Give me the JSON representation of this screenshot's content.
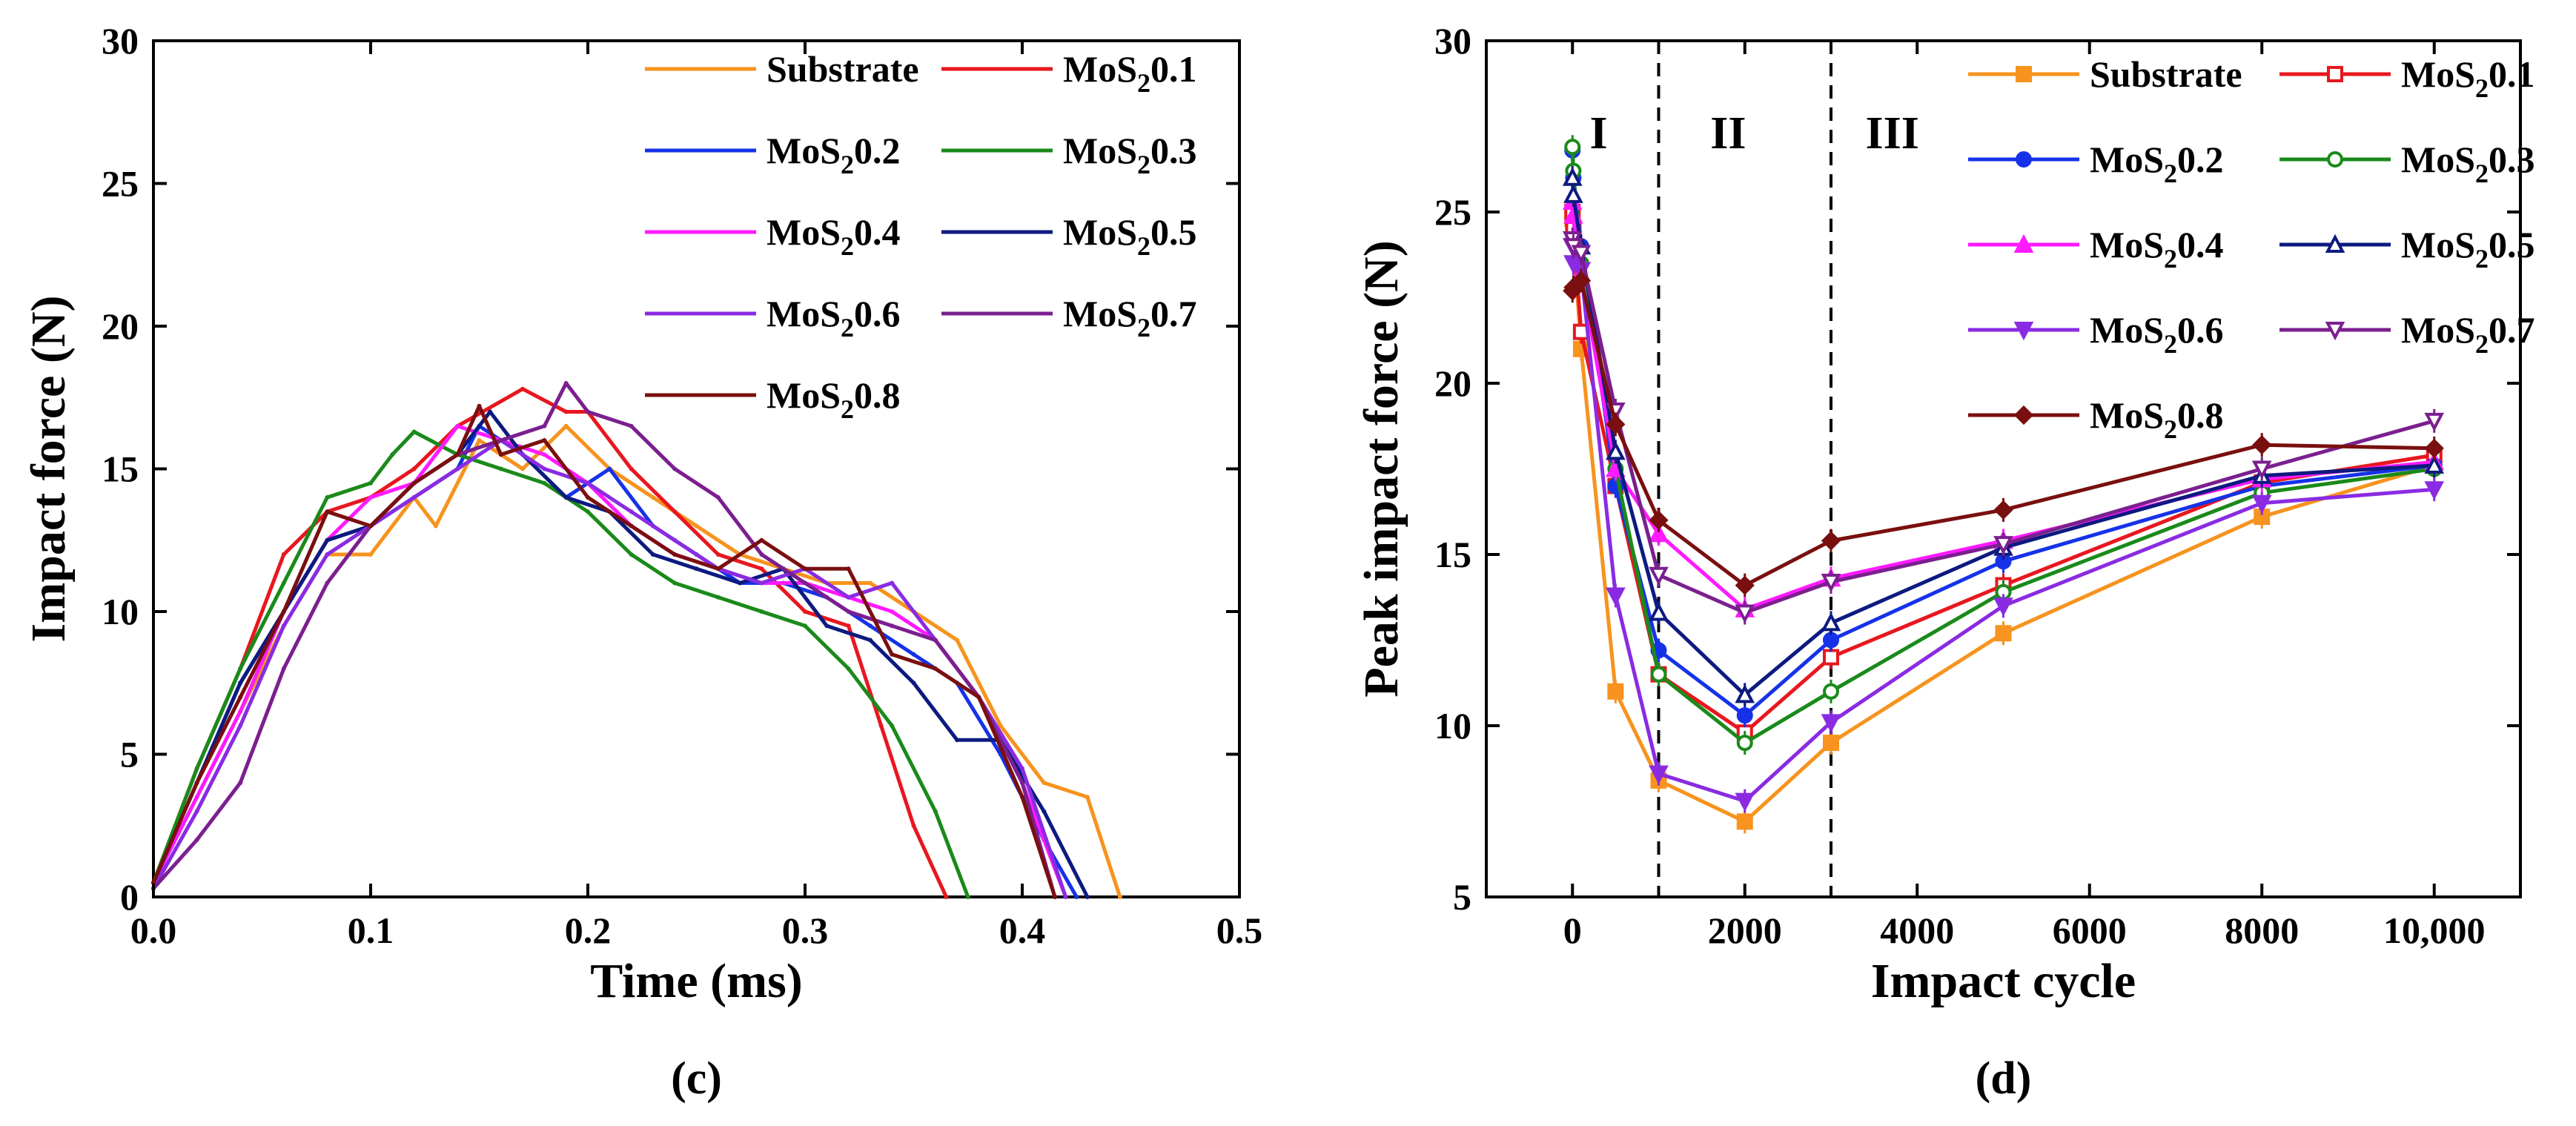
{
  "chart_data": [
    {
      "panel": "(c)",
      "type": "line",
      "title": "",
      "xlabel": "Time (ms)",
      "ylabel": "Impact force (N)",
      "xlim": [
        0.0,
        0.5
      ],
      "ylim": [
        0,
        30
      ],
      "xticks": [
        0.0,
        0.1,
        0.2,
        0.3,
        0.4,
        0.5
      ],
      "xtick_labels": [
        "0.0",
        "0.1",
        "0.2",
        "0.3",
        "0.4",
        "0.5"
      ],
      "yticks": [
        0,
        5,
        10,
        15,
        20,
        25,
        30
      ],
      "ytick_labels": [
        "0",
        "5",
        "10",
        "15",
        "20",
        "25",
        "30"
      ],
      "legend_position": "top-right",
      "series": [
        {
          "name": "Substrate",
          "color": "#f7931e",
          "legend_main": "Substrate",
          "legend_sub": "",
          "legend_tail": "",
          "x": [
            0,
            0.02,
            0.04,
            0.06,
            0.08,
            0.1,
            0.12,
            0.13,
            0.15,
            0.17,
            0.19,
            0.21,
            0.23,
            0.25,
            0.27,
            0.29,
            0.31,
            0.33,
            0.35,
            0.37,
            0.39,
            0.41,
            0.43,
            0.445
          ],
          "y": [
            0.5,
            3.5,
            6.5,
            9.5,
            12,
            12,
            14,
            13,
            16,
            15,
            16.5,
            15,
            14,
            13,
            12,
            11.5,
            11,
            11,
            10,
            9,
            6,
            4,
            3.5,
            0
          ]
        },
        {
          "name": "MoS20.1",
          "color": "#e8171f",
          "legend_main": "MoS",
          "legend_sub": "2",
          "legend_tail": "0.1",
          "x": [
            0,
            0.02,
            0.04,
            0.06,
            0.08,
            0.1,
            0.12,
            0.14,
            0.17,
            0.19,
            0.2,
            0.22,
            0.24,
            0.26,
            0.28,
            0.3,
            0.32,
            0.335,
            0.35,
            0.365
          ],
          "y": [
            0.5,
            4.5,
            8,
            12,
            13.5,
            14,
            15,
            16.5,
            17.8,
            17,
            17,
            15,
            13.5,
            12,
            11.5,
            10,
            9.5,
            6,
            2.5,
            0
          ]
        },
        {
          "name": "MoS20.2",
          "color": "#1632e8",
          "legend_main": "MoS",
          "legend_sub": "2",
          "legend_tail": "0.2",
          "x": [
            0,
            0.02,
            0.04,
            0.06,
            0.08,
            0.1,
            0.12,
            0.14,
            0.15,
            0.17,
            0.19,
            0.21,
            0.23,
            0.25,
            0.27,
            0.29,
            0.31,
            0.33,
            0.35,
            0.37,
            0.39,
            0.41,
            0.425
          ],
          "y": [
            0.5,
            4,
            7.5,
            10,
            12.5,
            13,
            14,
            15,
            16.5,
            15.5,
            14,
            15,
            13,
            12,
            11,
            11,
            10.5,
            9.5,
            8.5,
            7.5,
            5,
            2,
            0
          ]
        },
        {
          "name": "MoS20.3",
          "color": "#1a8a1a",
          "legend_main": "MoS",
          "legend_sub": "2",
          "legend_tail": "0.3",
          "x": [
            0,
            0.02,
            0.04,
            0.06,
            0.08,
            0.1,
            0.11,
            0.12,
            0.14,
            0.16,
            0.18,
            0.2,
            0.22,
            0.24,
            0.26,
            0.28,
            0.3,
            0.32,
            0.34,
            0.36,
            0.375
          ],
          "y": [
            0.5,
            4.5,
            8,
            11,
            14,
            14.5,
            15.5,
            16.3,
            15.5,
            15,
            14.5,
            13.5,
            12,
            11,
            10.5,
            10,
            9.5,
            8,
            6,
            3,
            0
          ]
        },
        {
          "name": "MoS20.4",
          "color": "#ff1aff",
          "legend_main": "MoS",
          "legend_sub": "2",
          "legend_tail": "0.4",
          "x": [
            0,
            0.02,
            0.04,
            0.06,
            0.08,
            0.1,
            0.12,
            0.14,
            0.16,
            0.18,
            0.2,
            0.22,
            0.24,
            0.26,
            0.28,
            0.3,
            0.32,
            0.34,
            0.36,
            0.38,
            0.4,
            0.42
          ],
          "y": [
            0.5,
            3.5,
            6.5,
            10,
            12.5,
            14,
            14.5,
            16.5,
            16,
            15.5,
            14.5,
            13,
            12,
            11.5,
            11,
            11,
            10.5,
            10,
            9,
            7,
            4,
            0
          ]
        },
        {
          "name": "MoS20.5",
          "color": "#0d1a80",
          "legend_main": "MoS",
          "legend_sub": "2",
          "legend_tail": "0.5",
          "x": [
            0,
            0.02,
            0.04,
            0.06,
            0.08,
            0.1,
            0.12,
            0.14,
            0.155,
            0.17,
            0.19,
            0.21,
            0.23,
            0.25,
            0.27,
            0.29,
            0.31,
            0.33,
            0.35,
            0.37,
            0.39,
            0.41,
            0.43
          ],
          "y": [
            0.5,
            4,
            7.5,
            10,
            12.5,
            13,
            14.5,
            15.5,
            17,
            15.5,
            14,
            13.5,
            12,
            11.5,
            11,
            11.5,
            9.5,
            9,
            7.5,
            5.5,
            5.5,
            3,
            0
          ]
        },
        {
          "name": "MoS20.6",
          "color": "#8a2be2",
          "legend_main": "MoS",
          "legend_sub": "2",
          "legend_tail": "0.6",
          "x": [
            0,
            0.02,
            0.04,
            0.06,
            0.08,
            0.1,
            0.12,
            0.14,
            0.16,
            0.18,
            0.2,
            0.22,
            0.24,
            0.26,
            0.28,
            0.3,
            0.32,
            0.34,
            0.36,
            0.38,
            0.4,
            0.42
          ],
          "y": [
            0.3,
            3,
            6,
            9.5,
            12,
            13,
            14,
            15,
            16,
            15,
            14.5,
            13.5,
            12.5,
            11.5,
            11,
            11.5,
            10.5,
            11,
            9,
            7,
            4.5,
            0
          ]
        },
        {
          "name": "MoS20.7",
          "color": "#7b1f8f",
          "legend_main": "MoS",
          "legend_sub": "2",
          "legend_tail": "0.7",
          "x": [
            0,
            0.02,
            0.04,
            0.06,
            0.08,
            0.1,
            0.12,
            0.14,
            0.16,
            0.18,
            0.19,
            0.2,
            0.22,
            0.24,
            0.26,
            0.28,
            0.3,
            0.32,
            0.34,
            0.36,
            0.38,
            0.4,
            0.415
          ],
          "y": [
            0.3,
            2,
            4,
            8,
            11,
            13,
            14.5,
            15.5,
            16,
            16.5,
            18,
            17,
            16.5,
            15,
            14,
            12,
            11,
            10,
            9.5,
            9,
            7,
            4,
            0
          ]
        },
        {
          "name": "MoS20.8",
          "color": "#7a0f0f",
          "legend_main": "MoS",
          "legend_sub": "2",
          "legend_tail": "0.8",
          "x": [
            0,
            0.02,
            0.04,
            0.06,
            0.08,
            0.1,
            0.12,
            0.14,
            0.15,
            0.16,
            0.18,
            0.2,
            0.22,
            0.24,
            0.26,
            0.28,
            0.3,
            0.32,
            0.34,
            0.36,
            0.38,
            0.4,
            0.415
          ],
          "y": [
            0.5,
            4,
            7,
            10,
            13.5,
            13,
            14.5,
            15.5,
            17.2,
            15.5,
            16,
            14,
            13,
            12,
            11.5,
            12.5,
            11.5,
            11.5,
            8.5,
            8,
            7,
            3.5,
            0
          ]
        }
      ]
    },
    {
      "panel": "(d)",
      "type": "line",
      "title": "",
      "xlabel": "Impact cycle",
      "ylabel": "Peak impact force (N)",
      "xlim": [
        -1000,
        11000
      ],
      "ylim": [
        5,
        30
      ],
      "xticks": [
        0,
        2000,
        4000,
        6000,
        8000,
        10000
      ],
      "xtick_labels": [
        "0",
        "2000",
        "4000",
        "6000",
        "8000",
        "10,000"
      ],
      "yticks": [
        5,
        10,
        15,
        20,
        25,
        30
      ],
      "ytick_labels": [
        "5",
        "10",
        "15",
        "20",
        "25",
        "30"
      ],
      "regions": [
        {
          "label": "I",
          "x": 200
        },
        {
          "label": "II",
          "x": 1600
        },
        {
          "label": "III",
          "x": 3400
        }
      ],
      "dividers": [
        1000,
        3000
      ],
      "legend_position": "top-right",
      "x_points": [
        0,
        10,
        100,
        500,
        1000,
        2000,
        3000,
        5000,
        8000,
        10000
      ],
      "series": [
        {
          "name": "Substrate",
          "color": "#f7931e",
          "marker": "square",
          "legend_main": "Substrate",
          "legend_sub": "",
          "legend_tail": "",
          "y": [
            24.8,
            24.3,
            21,
            11,
            8.4,
            7.2,
            9.5,
            12.7,
            16.1,
            17.6
          ]
        },
        {
          "name": "MoS20.1",
          "color": "#e8171f",
          "marker": "square-open",
          "legend_main": "MoS",
          "legend_sub": "2",
          "legend_tail": "0.1",
          "y": [
            25,
            24.5,
            21.5,
            17,
            11.5,
            9.8,
            12,
            14.1,
            17.1,
            17.9
          ]
        },
        {
          "name": "MoS20.2",
          "color": "#1632e8",
          "marker": "circle",
          "legend_main": "MoS",
          "legend_sub": "2",
          "legend_tail": "0.2",
          "y": [
            26.8,
            26,
            24,
            17,
            12.2,
            10.3,
            12.5,
            14.8,
            17.0,
            17.6
          ]
        },
        {
          "name": "MoS20.3",
          "color": "#1a8a1a",
          "marker": "circle-open",
          "legend_main": "MoS",
          "legend_sub": "2",
          "legend_tail": "0.3",
          "y": [
            26.9,
            26.2,
            23.5,
            17.5,
            11.5,
            9.5,
            11,
            13.9,
            16.8,
            17.5
          ]
        },
        {
          "name": "MoS20.4",
          "color": "#ff1aff",
          "marker": "triangle",
          "legend_main": "MoS",
          "legend_sub": "2",
          "legend_tail": "0.4",
          "y": [
            25.3,
            24.9,
            23.2,
            17.5,
            15.6,
            13.4,
            14.3,
            15.4,
            17.2,
            17.7
          ]
        },
        {
          "name": "MoS20.5",
          "color": "#0d1a80",
          "marker": "triangle-open",
          "legend_main": "MoS",
          "legend_sub": "2",
          "legend_tail": "0.5",
          "y": [
            26,
            25.5,
            24,
            18,
            13.3,
            10.9,
            13,
            15.2,
            17.3,
            17.6
          ]
        },
        {
          "name": "MoS20.6",
          "color": "#8a2be2",
          "marker": "triangle-down",
          "legend_main": "MoS",
          "legend_sub": "2",
          "legend_tail": "0.6",
          "y": [
            24,
            23.5,
            23.3,
            13.8,
            8.6,
            7.8,
            10.1,
            13.5,
            16.5,
            16.9
          ]
        },
        {
          "name": "MoS20.7",
          "color": "#7b1f8f",
          "marker": "triangle-down-open",
          "legend_main": "MoS",
          "legend_sub": "2",
          "legend_tail": "0.7",
          "y": [
            24.2,
            24,
            23.8,
            19.2,
            14.4,
            13.3,
            14.2,
            15.3,
            17.5,
            18.9
          ]
        },
        {
          "name": "MoS20.8",
          "color": "#7a0f0f",
          "marker": "diamond",
          "legend_main": "MoS",
          "legend_sub": "2",
          "legend_tail": "0.8",
          "y": [
            22.7,
            22.8,
            23,
            18.8,
            16.0,
            14.1,
            15.4,
            16.3,
            18.2,
            18.1
          ]
        }
      ]
    }
  ],
  "captions": {
    "c": "(c)",
    "d": "(d)"
  }
}
